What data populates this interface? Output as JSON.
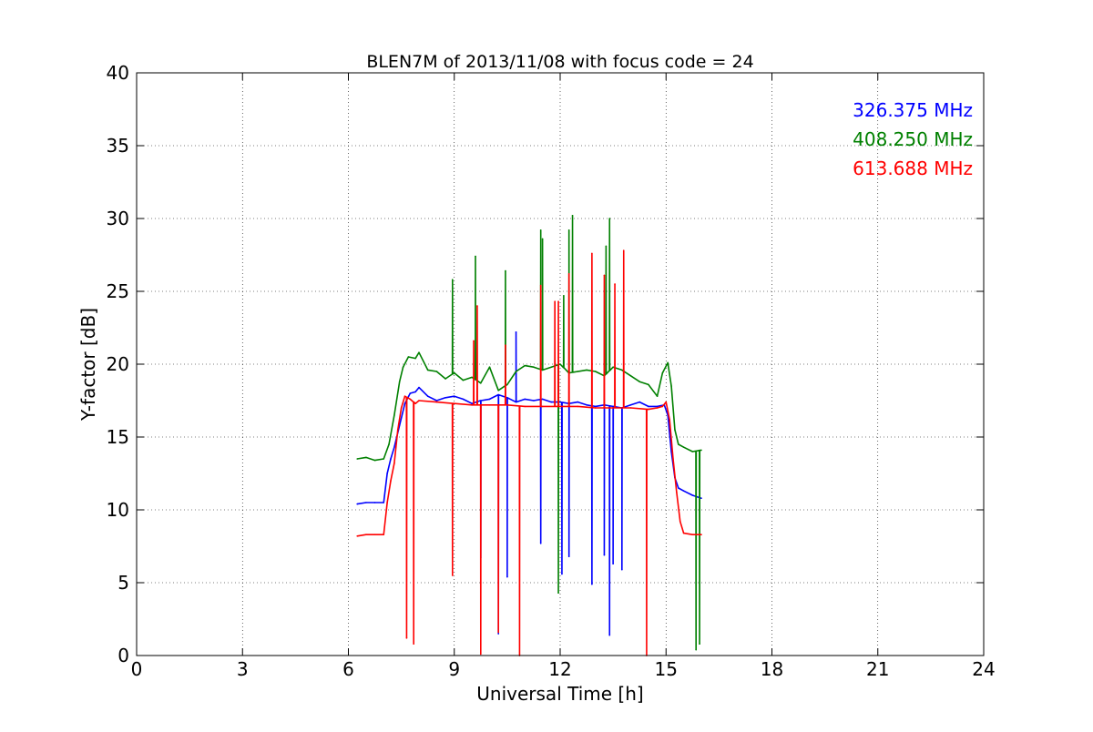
{
  "chart_data": {
    "type": "line",
    "title": "BLEN7M of 2013/11/08 with focus code = 24",
    "xlabel": "Universal Time [h]",
    "ylabel": "Y-factor [dB]",
    "xlim": [
      0,
      24
    ],
    "ylim": [
      0,
      40
    ],
    "xticks": [
      0,
      3,
      6,
      9,
      12,
      15,
      18,
      21,
      24
    ],
    "yticks": [
      0,
      5,
      10,
      15,
      20,
      25,
      30,
      35,
      40
    ],
    "grid": true,
    "legend_position": "top-right",
    "series": [
      {
        "name": "326.375 MHz",
        "color": "#0000ff",
        "x": [
          6.25,
          6.5,
          6.75,
          7.0,
          7.1,
          7.2,
          7.3,
          7.45,
          7.6,
          7.75,
          7.9,
          8.0,
          8.25,
          8.5,
          8.75,
          9.0,
          9.25,
          9.5,
          9.75,
          10.0,
          10.25,
          10.5,
          10.75,
          11.0,
          11.25,
          11.5,
          11.75,
          12.0,
          12.25,
          12.5,
          12.75,
          13.0,
          13.25,
          13.5,
          13.75,
          14.0,
          14.25,
          14.5,
          14.75,
          14.95,
          15.05,
          15.15,
          15.25,
          15.35,
          15.5,
          15.75,
          16.0
        ],
        "y": [
          10.4,
          10.5,
          10.5,
          10.5,
          12.5,
          13.5,
          14.3,
          15.8,
          17.3,
          18.0,
          18.1,
          18.4,
          17.8,
          17.5,
          17.7,
          17.8,
          17.6,
          17.3,
          17.5,
          17.6,
          17.9,
          17.7,
          17.4,
          17.6,
          17.5,
          17.6,
          17.4,
          17.4,
          17.3,
          17.4,
          17.2,
          17.1,
          17.2,
          17.1,
          17.0,
          17.2,
          17.4,
          17.1,
          17.1,
          17.2,
          16.5,
          14.0,
          12.2,
          11.5,
          11.3,
          11.0,
          10.8
        ],
        "spikes": [
          [
            9.75,
            6.7
          ],
          [
            10.25,
            1.5
          ],
          [
            10.5,
            5.4
          ],
          [
            10.75,
            22.2
          ],
          [
            11.45,
            7.7
          ],
          [
            12.05,
            5.6
          ],
          [
            12.25,
            6.8
          ],
          [
            12.9,
            4.9
          ],
          [
            13.25,
            6.9
          ],
          [
            13.4,
            1.4
          ],
          [
            13.5,
            6.3
          ],
          [
            13.75,
            5.9
          ]
        ]
      },
      {
        "name": "408.250 MHz",
        "color": "#008000",
        "x": [
          6.25,
          6.5,
          6.75,
          7.0,
          7.15,
          7.3,
          7.45,
          7.55,
          7.7,
          7.9,
          8.0,
          8.25,
          8.5,
          8.75,
          9.0,
          9.25,
          9.5,
          9.75,
          10.0,
          10.25,
          10.5,
          10.75,
          11.0,
          11.25,
          11.5,
          11.75,
          12.0,
          12.25,
          12.5,
          12.75,
          13.0,
          13.25,
          13.5,
          13.75,
          14.0,
          14.25,
          14.5,
          14.75,
          14.9,
          15.05,
          15.15,
          15.25,
          15.35,
          15.5,
          15.75,
          16.0
        ],
        "y": [
          13.5,
          13.6,
          13.4,
          13.5,
          14.5,
          16.5,
          18.8,
          19.8,
          20.5,
          20.4,
          20.8,
          19.6,
          19.5,
          19.0,
          19.4,
          18.9,
          19.1,
          18.7,
          19.8,
          18.2,
          18.6,
          19.5,
          19.9,
          19.8,
          19.6,
          19.8,
          20.0,
          19.4,
          19.5,
          19.6,
          19.5,
          19.2,
          19.8,
          19.6,
          19.2,
          18.8,
          18.6,
          17.8,
          19.4,
          20.1,
          18.5,
          15.5,
          14.5,
          14.3,
          14.0,
          14.1
        ],
        "spikes": [
          [
            8.95,
            25.8
          ],
          [
            9.6,
            27.4
          ],
          [
            10.45,
            26.4
          ],
          [
            11.45,
            29.2
          ],
          [
            11.5,
            28.6
          ],
          [
            11.95,
            4.3
          ],
          [
            12.1,
            24.7
          ],
          [
            12.25,
            29.2
          ],
          [
            12.35,
            30.2
          ],
          [
            13.3,
            28.1
          ],
          [
            13.4,
            30.0
          ],
          [
            15.85,
            0.4
          ],
          [
            15.95,
            0.8
          ]
        ]
      },
      {
        "name": "613.688 MHz",
        "color": "#ff0000",
        "x": [
          6.25,
          6.5,
          6.75,
          7.0,
          7.1,
          7.2,
          7.3,
          7.4,
          7.5,
          7.6,
          7.75,
          7.9,
          8.0,
          8.5,
          9.0,
          9.5,
          10.0,
          10.5,
          11.0,
          11.5,
          12.0,
          12.5,
          13.0,
          13.5,
          14.0,
          14.5,
          14.75,
          14.9,
          15.0,
          15.1,
          15.2,
          15.3,
          15.4,
          15.5,
          15.75,
          16.0
        ],
        "y": [
          8.2,
          8.3,
          8.3,
          8.3,
          10.5,
          12.0,
          13.2,
          15.5,
          17.0,
          17.8,
          17.6,
          17.3,
          17.5,
          17.4,
          17.3,
          17.2,
          17.2,
          17.2,
          17.1,
          17.1,
          17.1,
          17.1,
          17.0,
          17.0,
          17.0,
          16.9,
          17.0,
          17.1,
          17.4,
          16.2,
          13.5,
          11.2,
          9.2,
          8.4,
          8.3,
          8.3
        ],
        "spikes": [
          [
            7.65,
            1.2
          ],
          [
            7.85,
            0.8
          ],
          [
            8.95,
            5.5
          ],
          [
            9.55,
            21.6
          ],
          [
            9.65,
            24.0
          ],
          [
            9.75,
            0.1
          ],
          [
            10.25,
            1.6
          ],
          [
            10.45,
            21.3
          ],
          [
            10.85,
            0.0
          ],
          [
            11.45,
            25.4
          ],
          [
            11.85,
            24.3
          ],
          [
            11.95,
            24.3
          ],
          [
            12.25,
            26.2
          ],
          [
            12.9,
            27.6
          ],
          [
            13.25,
            26.1
          ],
          [
            13.55,
            25.5
          ],
          [
            13.8,
            27.8
          ],
          [
            14.45,
            0.0
          ]
        ]
      }
    ]
  }
}
